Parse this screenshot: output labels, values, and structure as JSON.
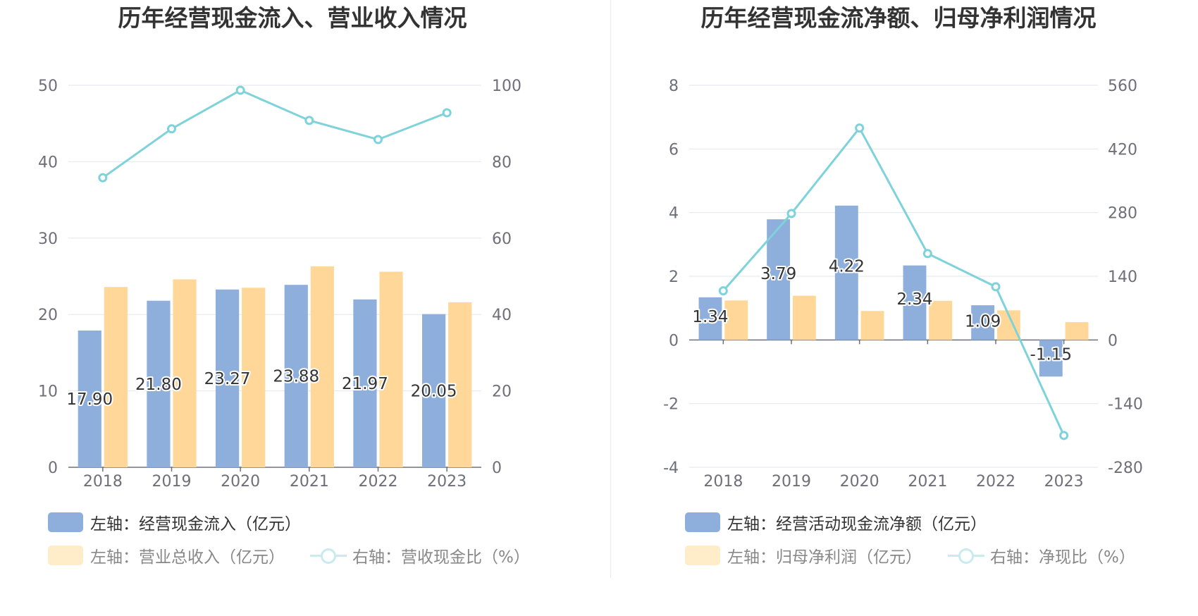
{
  "chart_data": [
    {
      "type": "bar",
      "title": "历年经营现金流入、营业收入情况",
      "categories": [
        "2018",
        "2019",
        "2020",
        "2021",
        "2022",
        "2023"
      ],
      "left_axis": {
        "ticks": [
          "0",
          "10",
          "20",
          "30",
          "40",
          "50"
        ],
        "ylim": [
          0,
          50
        ]
      },
      "right_axis": {
        "ticks": [
          "0",
          "20",
          "40",
          "60",
          "80",
          "100"
        ],
        "ylim": [
          0,
          100
        ]
      },
      "series": [
        {
          "name": "左轴：经营现金流入（亿元）",
          "type": "bar",
          "axis": "left",
          "color": "#8eaedb",
          "values": [
            17.9,
            21.8,
            23.27,
            23.88,
            21.97,
            20.05
          ],
          "labels": [
            "17.90",
            "21.80",
            "23.27",
            "23.88",
            "21.97",
            "20.05"
          ]
        },
        {
          "name": "左轴：营业总收入（亿元）",
          "type": "bar",
          "axis": "left",
          "color": "#ffd899",
          "values": [
            23.6,
            24.6,
            23.5,
            26.3,
            25.6,
            21.6
          ]
        },
        {
          "name": "右轴：营收现金比（%）",
          "type": "line",
          "axis": "right",
          "color": "#7ed3da",
          "values": [
            75.8,
            88.6,
            98.7,
            90.8,
            85.8,
            92.8
          ]
        }
      ],
      "grid": true,
      "legend_position": "bottom-left"
    },
    {
      "type": "bar",
      "title": "历年经营现金流净额、归母净利润情况",
      "categories": [
        "2018",
        "2019",
        "2020",
        "2021",
        "2022",
        "2023"
      ],
      "left_axis": {
        "ticks": [
          "-4",
          "-2",
          "0",
          "2",
          "4",
          "6",
          "8"
        ],
        "ylim": [
          -4,
          8
        ]
      },
      "right_axis": {
        "ticks": [
          "-280",
          "-140",
          "0",
          "140",
          "280",
          "420",
          "560"
        ],
        "ylim": [
          -280,
          560
        ]
      },
      "series": [
        {
          "name": "左轴：经营活动现金流净额（亿元）",
          "type": "bar",
          "axis": "left",
          "color": "#8eaedb",
          "values": [
            1.34,
            3.79,
            4.22,
            2.34,
            1.09,
            -1.15
          ],
          "labels": [
            "1.34",
            "3.79",
            "4.22",
            "2.34",
            "1.09",
            "-1.15"
          ]
        },
        {
          "name": "左轴：归母净利润（亿元）",
          "type": "bar",
          "axis": "left",
          "color": "#ffd899",
          "values": [
            1.24,
            1.39,
            0.91,
            1.23,
            0.93,
            0.56
          ]
        },
        {
          "name": "右轴：净现比（%）",
          "type": "line",
          "axis": "right",
          "color": "#7ed3da",
          "values": [
            108,
            278,
            466,
            190,
            117,
            -210
          ]
        }
      ],
      "grid": true,
      "legend_position": "bottom-left"
    }
  ]
}
